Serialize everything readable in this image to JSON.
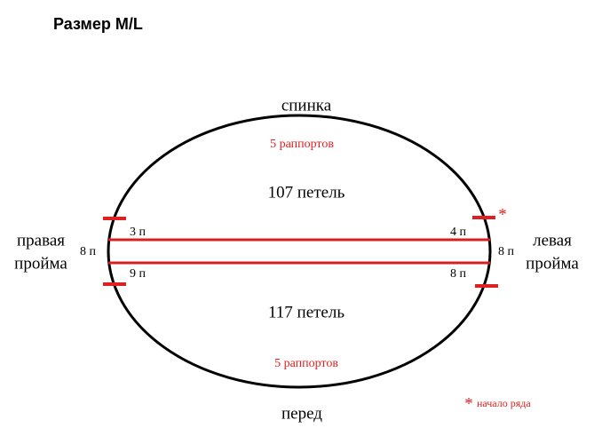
{
  "title": "Размер M/L",
  "top": {
    "label": "спинка",
    "repeats": "5 раппортов",
    "stitches": "107 петель"
  },
  "bottom": {
    "label": "перед",
    "repeats": "5 раппортов",
    "stitches": "117 петель"
  },
  "left": {
    "line1": "правая",
    "line2": "пройма",
    "gap": "8 п",
    "upper": "3 п",
    "lower": "9 п"
  },
  "right": {
    "line1": "левая",
    "line2": "пройма",
    "gap": "8 п",
    "upper": "4 п",
    "lower": "8 п",
    "marker": "*"
  },
  "note": {
    "marker": "*",
    "text": "начало ряда"
  }
}
